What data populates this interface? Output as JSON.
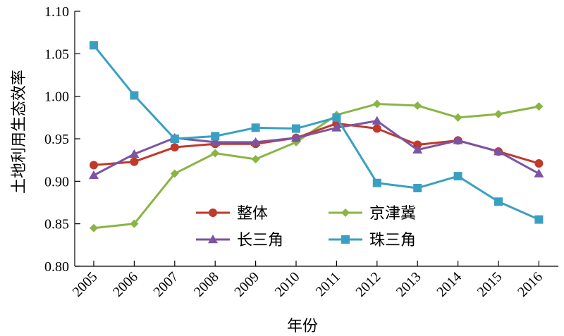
{
  "chart_data": {
    "type": "line",
    "xlabel": "年份",
    "ylabel": "土地利用生态效率",
    "categories": [
      "2005",
      "2006",
      "2007",
      "2008",
      "2009",
      "2010",
      "2011",
      "2012",
      "2013",
      "2014",
      "2015",
      "2016"
    ],
    "ylim": [
      0.8,
      1.1
    ],
    "yticks": [
      "0.80",
      "0.85",
      "0.90",
      "0.95",
      "1.00",
      "1.05",
      "1.10"
    ],
    "legend_position": "bottom-center",
    "grid": false,
    "series": [
      {
        "name": "整体",
        "color": "#c0392b",
        "marker": "circle",
        "values": [
          0.919,
          0.923,
          0.94,
          0.944,
          0.944,
          0.951,
          0.968,
          0.962,
          0.943,
          0.948,
          0.935,
          0.921
        ]
      },
      {
        "name": "京津冀",
        "color": "#8ab545",
        "marker": "diamond",
        "values": [
          0.845,
          0.85,
          0.909,
          0.933,
          0.926,
          0.946,
          0.978,
          0.991,
          0.989,
          0.975,
          0.979,
          0.988
        ]
      },
      {
        "name": "长三角",
        "color": "#7b54a3",
        "marker": "triangle",
        "values": [
          0.907,
          0.932,
          0.951,
          0.946,
          0.946,
          0.951,
          0.963,
          0.971,
          0.937,
          0.948,
          0.935,
          0.909
        ]
      },
      {
        "name": "珠三角",
        "color": "#3aa0c3",
        "marker": "square",
        "values": [
          1.06,
          1.001,
          0.95,
          0.953,
          0.963,
          0.962,
          0.975,
          0.898,
          0.892,
          0.906,
          0.876,
          0.855
        ]
      }
    ]
  }
}
